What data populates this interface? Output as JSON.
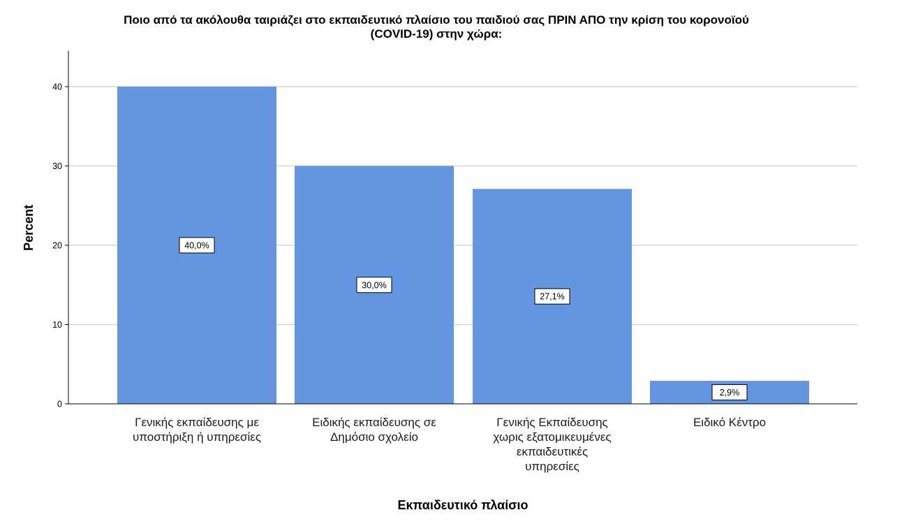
{
  "chart_data": {
    "type": "bar",
    "title": "Ποιο από τα ακόλουθα ταιριάζει στο εκπαιδευτικό πλαίσιο του παιδιού σας ΠΡΙΝ ΑΠΟ την κρίση του κορονοϊού\n(COVID-19) στην χώρα:",
    "xlabel": "Εκπαιδευτικό πλαίσιο",
    "ylabel": "Percent",
    "categories": [
      "Γενικής εκπαίδευσης με υποστήριξη ή υπηρεσίες",
      "Ειδικής εκπαίδευσης σε Δημόσιο σχολείο",
      "Γενικής Εκπαίδευσης χωρις εξατομικευμένες εκπαιδευτικές υπηρεσίες",
      "Ειδικό Κέντρο"
    ],
    "category_label_lines": [
      [
        "Γενικής εκπαίδευσης με",
        "υποστήριξη ή υπηρεσίες"
      ],
      [
        "Ειδικής εκπαίδευσης σε",
        "Δημόσιο σχολείο"
      ],
      [
        "Γενικής Εκπαίδευσης",
        "χωρις εξατομικευμένες",
        "εκπαιδευτικές",
        "υπηρεσίες"
      ],
      [
        "Ειδικό Κέντρο"
      ]
    ],
    "values": [
      40.0,
      30.0,
      27.1,
      2.9
    ],
    "data_labels": [
      "40,0%",
      "30,0%",
      "27,1%",
      "2,9%"
    ],
    "yticks": [
      0,
      10,
      20,
      30,
      40
    ],
    "ylim": [
      0,
      44.5
    ],
    "grid": true,
    "bar_color": "#6495e0"
  }
}
